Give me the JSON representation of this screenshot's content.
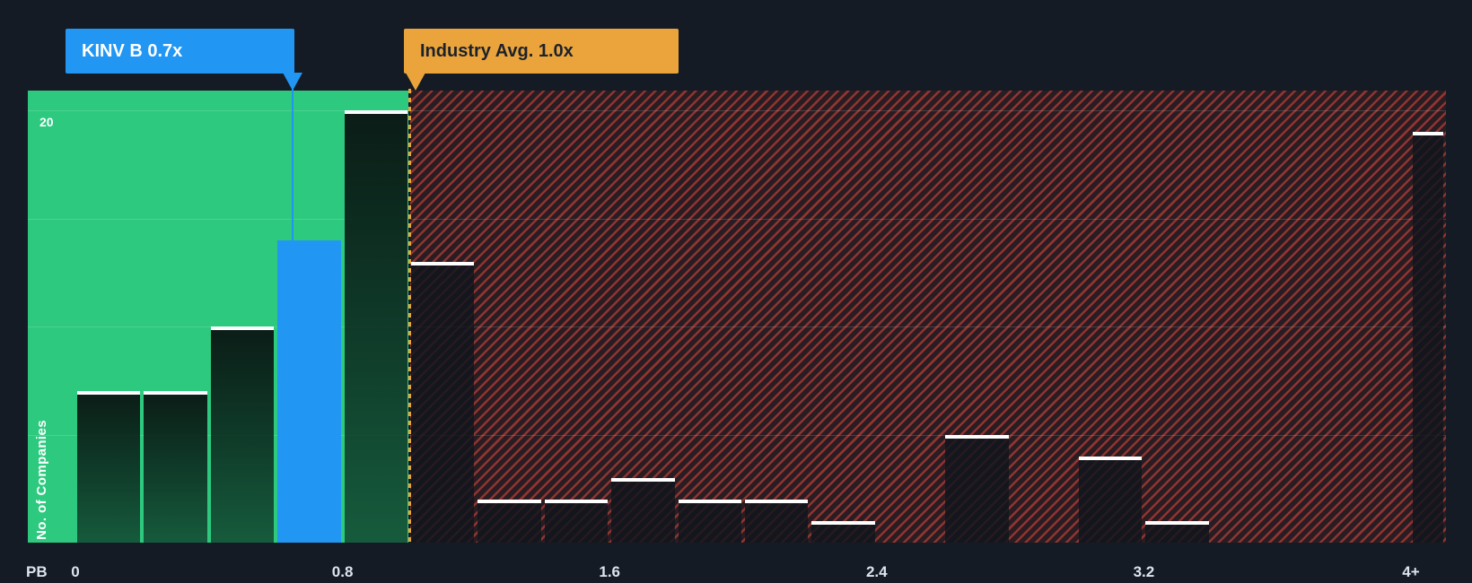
{
  "colors": {
    "background": "#151b24",
    "below_average_green": "#2dc97e",
    "above_average_red": "#e84a3a",
    "company_blue": "#2196f3",
    "industry_amber": "#eaa43b",
    "bar_cap_white": "#ffffff"
  },
  "callouts": {
    "company": {
      "label": "KINV B 0.7x"
    },
    "industry": {
      "label": "Industry Avg. 1.0x"
    }
  },
  "y_axis": {
    "title": "No. of Companies",
    "max_tick": "20"
  },
  "x_axis": {
    "prefix": "PB"
  },
  "chart_data": {
    "type": "bar",
    "subtype": "histogram",
    "xlabel": "PB",
    "ylabel": "No. of Companies",
    "ylim": [
      0,
      20
    ],
    "gridlines": [
      5,
      10,
      15,
      20
    ],
    "industry_avg": 1.0,
    "company": {
      "name": "KINV B",
      "pb_ratio": 0.7
    },
    "x_ticks": [
      {
        "value": 0,
        "label": "0"
      },
      {
        "value": 0.8,
        "label": "0.8"
      },
      {
        "value": 1.6,
        "label": "1.6"
      },
      {
        "value": 2.4,
        "label": "2.4"
      },
      {
        "value": 3.2,
        "label": "3.2"
      },
      {
        "value": 4,
        "label": "4+"
      }
    ],
    "bins": [
      {
        "from": 0.0,
        "to": 0.2,
        "count": 7
      },
      {
        "from": 0.2,
        "to": 0.4,
        "count": 7
      },
      {
        "from": 0.4,
        "to": 0.6,
        "count": 10
      },
      {
        "from": 0.6,
        "to": 0.8,
        "count": 14,
        "highlight": true
      },
      {
        "from": 0.8,
        "to": 1.0,
        "count": 20
      },
      {
        "from": 1.0,
        "to": 1.2,
        "count": 13
      },
      {
        "from": 1.2,
        "to": 1.4,
        "count": 2
      },
      {
        "from": 1.4,
        "to": 1.6,
        "count": 2
      },
      {
        "from": 1.6,
        "to": 1.8,
        "count": 3
      },
      {
        "from": 1.8,
        "to": 2.0,
        "count": 2
      },
      {
        "from": 2.0,
        "to": 2.2,
        "count": 2
      },
      {
        "from": 2.2,
        "to": 2.4,
        "count": 1
      },
      {
        "from": 2.4,
        "to": 2.6,
        "count": 0
      },
      {
        "from": 2.6,
        "to": 2.8,
        "count": 5
      },
      {
        "from": 2.8,
        "to": 3.0,
        "count": 0
      },
      {
        "from": 3.0,
        "to": 3.2,
        "count": 4
      },
      {
        "from": 3.2,
        "to": 3.4,
        "count": 1
      },
      {
        "from": 3.4,
        "to": 3.6,
        "count": 0
      },
      {
        "from": 3.6,
        "to": 3.8,
        "count": 0
      },
      {
        "from": 3.8,
        "to": 4.0,
        "count": 0
      },
      {
        "from": 4.0,
        "to": null,
        "count": 19,
        "overflow": true
      }
    ]
  }
}
